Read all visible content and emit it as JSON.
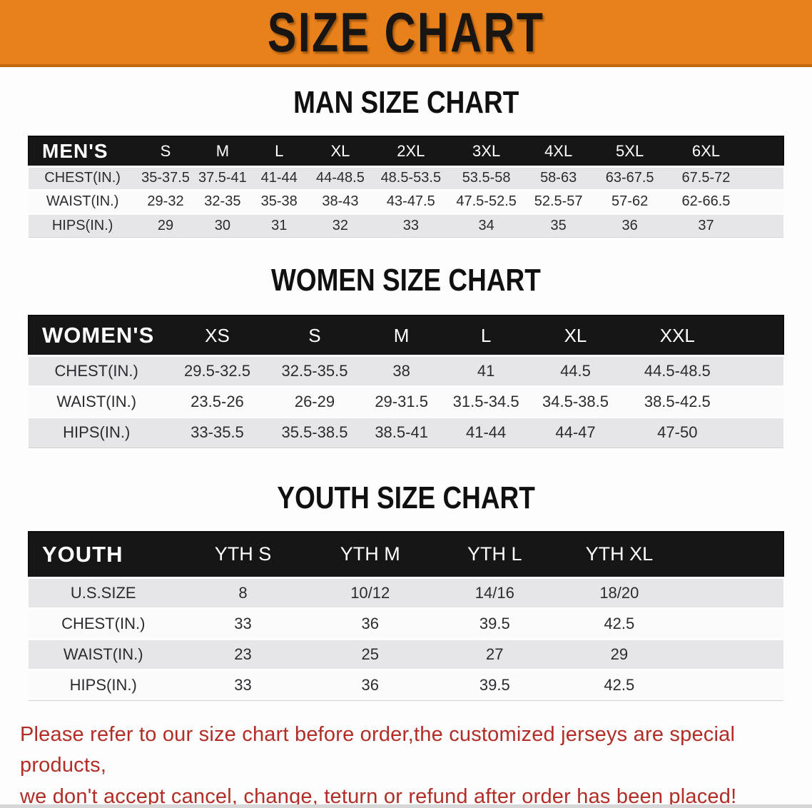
{
  "banner": {
    "title": "SIZE CHART"
  },
  "colors": {
    "banner_bg": "#e8811b",
    "table_header_bg": "#161616",
    "stripe_bg": "#e6e6e8",
    "disclaimer_color": "#b22d26"
  },
  "sections": [
    {
      "heading": "MAN SIZE CHART",
      "table": {
        "header_label": "MEN'S",
        "columns": [
          "S",
          "M",
          "L",
          "XL",
          "2XL",
          "3XL",
          "4XL",
          "5XL",
          "6XL"
        ],
        "rows": [
          {
            "label": "CHEST(IN.)",
            "values": [
              "35-37.5",
              "37.5-41",
              "41-44",
              "44-48.5",
              "48.5-53.5",
              "53.5-58",
              "58-63",
              "63-67.5",
              "67.5-72"
            ]
          },
          {
            "label": "WAIST(IN.)",
            "values": [
              "29-32",
              "32-35",
              "35-38",
              "38-43",
              "43-47.5",
              "47.5-52.5",
              "52.5-57",
              "57-62",
              "62-66.5"
            ]
          },
          {
            "label": "HIPS(IN.)",
            "values": [
              "29",
              "30",
              "31",
              "32",
              "33",
              "34",
              "35",
              "36",
              "37"
            ]
          }
        ]
      }
    },
    {
      "heading": "WOMEN SIZE CHART",
      "table": {
        "header_label": "WOMEN'S",
        "columns": [
          "XS",
          "S",
          "M",
          "L",
          "XL",
          "XXL"
        ],
        "rows": [
          {
            "label": "CHEST(IN.)",
            "values": [
              "29.5-32.5",
              "32.5-35.5",
              "38",
              "41",
              "44.5",
              "44.5-48.5"
            ]
          },
          {
            "label": "WAIST(IN.)",
            "values": [
              "23.5-26",
              "26-29",
              "29-31.5",
              "31.5-34.5",
              "34.5-38.5",
              "38.5-42.5"
            ]
          },
          {
            "label": "HIPS(IN.)",
            "values": [
              "33-35.5",
              "35.5-38.5",
              "38.5-41",
              "41-44",
              "44-47",
              "47-50"
            ]
          }
        ]
      }
    },
    {
      "heading": "YOUTH SIZE CHART",
      "table": {
        "header_label": "YOUTH",
        "columns": [
          "YTH S",
          "YTH M",
          "YTH L",
          "YTH XL"
        ],
        "rows": [
          {
            "label": "U.S.SIZE",
            "values": [
              "8",
              "10/12",
              "14/16",
              "18/20"
            ]
          },
          {
            "label": "CHEST(IN.)",
            "values": [
              "33",
              "36",
              "39.5",
              "42.5"
            ]
          },
          {
            "label": "WAIST(IN.)",
            "values": [
              "23",
              "25",
              "27",
              "29"
            ]
          },
          {
            "label": "HIPS(IN.)",
            "values": [
              "33",
              "36",
              "39.5",
              "42.5"
            ]
          }
        ]
      }
    }
  ],
  "disclaimer": {
    "line1": "Please refer to our size chart before order,the customized jerseys are special products,",
    "line2": "we don't accept cancel, change, teturn or refund after order has been placed!"
  }
}
